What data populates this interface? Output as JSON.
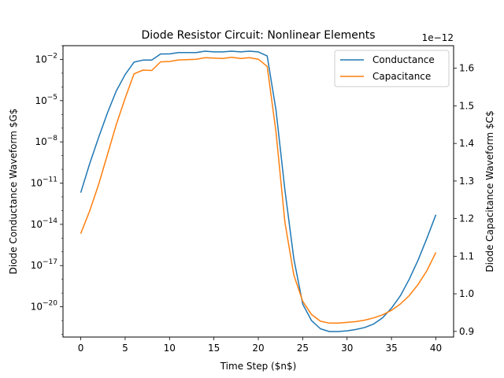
{
  "chart_data": {
    "type": "line",
    "title": "Diode Resistor Circuit: Nonlinear Elements",
    "xlabel": "Time Step ($n$)",
    "ylabel_left": "Diode Conductance Waveform $G$",
    "ylabel_right": "Diode Capacitance Waveform $C$",
    "right_axis_offset_label": "1e−12",
    "x_ticks": [
      0,
      5,
      10,
      15,
      20,
      25,
      30,
      35,
      40
    ],
    "y_left_scale": "log",
    "y_left_ticks": [
      {
        "exp": -2,
        "label": "10^-2"
      },
      {
        "exp": -5,
        "label": "10^-5"
      },
      {
        "exp": -8,
        "label": "10^-8"
      },
      {
        "exp": -11,
        "label": "10^-11"
      },
      {
        "exp": -14,
        "label": "10^-14"
      },
      {
        "exp": -17,
        "label": "10^-17"
      },
      {
        "exp": -20,
        "label": "10^-20"
      }
    ],
    "y_right_ticks": [
      "0.9",
      "1.0",
      "1.1",
      "1.2",
      "1.3",
      "1.4",
      "1.5",
      "1.6"
    ],
    "y_right_tick_values": [
      0.9,
      1.0,
      1.1,
      1.2,
      1.3,
      1.4,
      1.5,
      1.6
    ],
    "xlim": [
      -2,
      42
    ],
    "y_left_lim_exp": [
      -22.2,
      -1.0
    ],
    "y_right_lim": [
      0.885,
      1.66
    ],
    "legend_position": "upper-right",
    "grid": false,
    "series": [
      {
        "name": "Conductance",
        "axis": "left",
        "color": "#1f77b4",
        "x": [
          0,
          1,
          2,
          3,
          4,
          5,
          6,
          7,
          8,
          9,
          10,
          11,
          12,
          13,
          14,
          15,
          16,
          17,
          18,
          19,
          20,
          21,
          22,
          23,
          24,
          25,
          26,
          27,
          28,
          29,
          30,
          31,
          32,
          33,
          34,
          35,
          36,
          37,
          38,
          39,
          40
        ],
        "log10_values": [
          -11.7,
          -9.6,
          -7.7,
          -5.9,
          -4.3,
          -3.1,
          -2.2,
          -2.05,
          -2.05,
          -1.6,
          -1.6,
          -1.5,
          -1.5,
          -1.5,
          -1.4,
          -1.45,
          -1.45,
          -1.4,
          -1.45,
          -1.4,
          -1.45,
          -1.75,
          -5.7,
          -11.5,
          -16.5,
          -19.8,
          -21.0,
          -21.6,
          -21.8,
          -21.8,
          -21.75,
          -21.65,
          -21.5,
          -21.25,
          -20.8,
          -20.1,
          -19.2,
          -18.0,
          -16.6,
          -15.0,
          -13.3
        ]
      },
      {
        "name": "Capacitance",
        "axis": "right",
        "color": "#ff7f0e",
        "x": [
          0,
          1,
          2,
          3,
          4,
          5,
          6,
          7,
          8,
          9,
          10,
          11,
          12,
          13,
          14,
          15,
          16,
          17,
          18,
          19,
          20,
          21,
          22,
          23,
          24,
          25,
          26,
          27,
          28,
          29,
          30,
          31,
          32,
          33,
          34,
          35,
          36,
          37,
          38,
          39,
          40
        ],
        "values": [
          1.16,
          1.22,
          1.29,
          1.37,
          1.45,
          1.52,
          1.585,
          1.595,
          1.594,
          1.617,
          1.618,
          1.622,
          1.623,
          1.624,
          1.628,
          1.627,
          1.626,
          1.629,
          1.626,
          1.628,
          1.624,
          1.605,
          1.43,
          1.19,
          1.05,
          0.98,
          0.945,
          0.927,
          0.922,
          0.922,
          0.924,
          0.926,
          0.93,
          0.936,
          0.944,
          0.956,
          0.973,
          0.995,
          1.025,
          1.062,
          1.11
        ]
      }
    ]
  }
}
